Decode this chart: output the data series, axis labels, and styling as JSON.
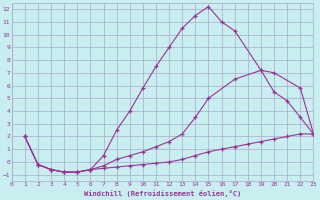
{
  "background_color": "#c8eef0",
  "grid_color": "#aaaacc",
  "line_color": "#993399",
  "xlabel": "Windchill (Refroidissement éolien,°C)",
  "xlim": [
    0,
    23
  ],
  "ylim": [
    -1.5,
    12.5
  ],
  "xticks": [
    0,
    1,
    2,
    3,
    4,
    5,
    6,
    7,
    8,
    9,
    10,
    11,
    12,
    13,
    14,
    15,
    16,
    17,
    18,
    19,
    20,
    21,
    22,
    23
  ],
  "yticks": [
    -1,
    0,
    1,
    2,
    3,
    4,
    5,
    6,
    7,
    8,
    9,
    10,
    11,
    12
  ],
  "line1_x": [
    1,
    2,
    3,
    4,
    5,
    6,
    7,
    8,
    9,
    10,
    11,
    12,
    13,
    14,
    15,
    16,
    17,
    19,
    20,
    21,
    22,
    23
  ],
  "line1_y": [
    2.0,
    -0.2,
    -0.6,
    -0.8,
    -0.8,
    -0.6,
    0.5,
    2.5,
    4.0,
    5.8,
    7.5,
    9.0,
    10.5,
    11.5,
    12.2,
    11.0,
    10.3,
    7.2,
    5.5,
    4.8,
    3.5,
    2.2
  ],
  "line2_x": [
    1,
    2,
    3,
    4,
    5,
    6,
    7,
    8,
    9,
    10,
    11,
    12,
    13,
    14,
    15,
    17,
    19,
    20,
    22,
    23
  ],
  "line2_y": [
    2.0,
    -0.2,
    -0.6,
    -0.8,
    -0.8,
    -0.6,
    -0.3,
    0.2,
    0.5,
    0.8,
    1.2,
    1.6,
    2.2,
    3.5,
    5.0,
    6.5,
    7.2,
    7.0,
    5.8,
    2.2
  ],
  "line3_x": [
    1,
    2,
    3,
    4,
    5,
    6,
    7,
    8,
    9,
    10,
    11,
    12,
    13,
    14,
    15,
    16,
    17,
    18,
    19,
    20,
    21,
    22,
    23
  ],
  "line3_y": [
    2.0,
    -0.2,
    -0.6,
    -0.8,
    -0.8,
    -0.6,
    -0.5,
    -0.4,
    -0.3,
    -0.2,
    -0.1,
    0.0,
    0.2,
    0.5,
    0.8,
    1.0,
    1.2,
    1.4,
    1.6,
    1.8,
    2.0,
    2.2,
    2.2
  ]
}
